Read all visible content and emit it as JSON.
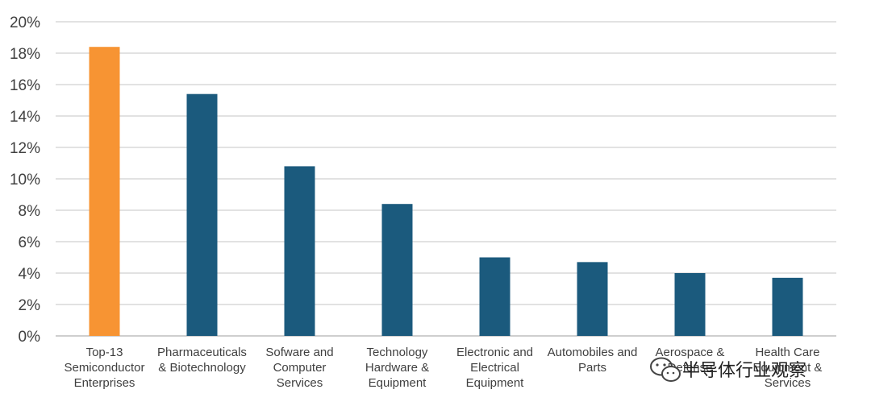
{
  "chart_data": {
    "type": "bar",
    "title": "",
    "xlabel": "",
    "ylabel": "",
    "ylim": [
      0,
      20
    ],
    "yticks": [
      "0%",
      "2%",
      "4%",
      "6%",
      "8%",
      "10%",
      "12%",
      "14%",
      "16%",
      "18%",
      "20%"
    ],
    "grid": true,
    "categories": [
      [
        "Top-13",
        "Semiconductor",
        "Enterprises"
      ],
      [
        "Pharmaceuticals",
        "& Biotechnology"
      ],
      [
        "Sofware and",
        "Computer",
        "Services"
      ],
      [
        "Technology",
        "Hardware &",
        "Equipment"
      ],
      [
        "Electronic and",
        "Electrical",
        "Equipment"
      ],
      [
        "Automobiles and",
        "Parts"
      ],
      [
        "Aerospace &",
        "Defense"
      ],
      [
        "Health Care",
        "Equipment &",
        "Services"
      ]
    ],
    "values": [
      18.4,
      15.4,
      10.8,
      8.4,
      5.0,
      4.7,
      4.0,
      3.7
    ],
    "unit": "%",
    "colors": {
      "highlight": "#F79433",
      "default": "#1B5A7D",
      "grid": "#D9D9D9"
    },
    "highlight_index": 0
  },
  "watermark": {
    "icon": "wechat-icon",
    "text": "半导体行业观察"
  }
}
